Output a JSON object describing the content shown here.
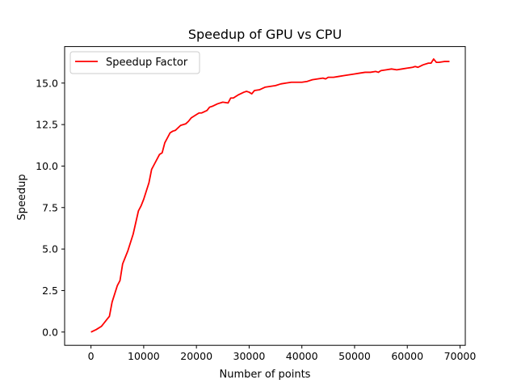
{
  "chart_data": {
    "type": "line",
    "title": "Speedup of GPU vs CPU",
    "xlabel": "Number of points",
    "ylabel": "Speedup",
    "xlim": [
      -5000,
      71000
    ],
    "ylim": [
      -0.8,
      17.2
    ],
    "xticks": [
      0,
      10000,
      20000,
      30000,
      40000,
      50000,
      60000,
      70000
    ],
    "xtick_labels": [
      "0",
      "10000",
      "20000",
      "30000",
      "40000",
      "50000",
      "60000",
      "70000"
    ],
    "yticks": [
      0.0,
      2.5,
      5.0,
      7.5,
      10.0,
      12.5,
      15.0
    ],
    "ytick_labels": [
      "0.0",
      "2.5",
      "5.0",
      "7.5",
      "10.0",
      "12.5",
      "15.0"
    ],
    "grid": false,
    "legend": "top-left",
    "series": [
      {
        "name": "Speedup Factor",
        "color": "#ff0000",
        "x": [
          0,
          1000,
          2000,
          3000,
          3500,
          4000,
          5000,
          5500,
          6000,
          6500,
          7000,
          8000,
          9000,
          9500,
          10000,
          11000,
          11500,
          12000,
          13000,
          13500,
          14000,
          15000,
          15500,
          16000,
          17000,
          18000,
          18500,
          19000,
          20000,
          20500,
          21000,
          22000,
          22500,
          23000,
          24000,
          25000,
          26000,
          26500,
          27000,
          28000,
          29000,
          29500,
          30000,
          30500,
          31000,
          32000,
          33000,
          34000,
          35000,
          36000,
          37000,
          38000,
          39000,
          40000,
          41000,
          42000,
          43000,
          44000,
          44500,
          45000,
          46000,
          47000,
          48000,
          49000,
          50000,
          51000,
          52000,
          53000,
          54000,
          54500,
          55000,
          56000,
          57000,
          58000,
          59000,
          60000,
          61000,
          61500,
          62000,
          63000,
          64000,
          64500,
          65000,
          65500,
          66000,
          67000,
          68000
        ],
        "values": [
          0.0,
          0.15,
          0.35,
          0.75,
          0.95,
          1.8,
          2.8,
          3.1,
          4.1,
          4.5,
          4.9,
          5.9,
          7.3,
          7.6,
          8.0,
          9.0,
          9.8,
          10.1,
          10.7,
          10.8,
          11.4,
          12.0,
          12.1,
          12.15,
          12.45,
          12.55,
          12.7,
          12.9,
          13.1,
          13.2,
          13.2,
          13.35,
          13.55,
          13.6,
          13.75,
          13.85,
          13.8,
          14.1,
          14.1,
          14.3,
          14.45,
          14.5,
          14.45,
          14.35,
          14.55,
          14.6,
          14.75,
          14.8,
          14.85,
          14.95,
          15.0,
          15.05,
          15.05,
          15.05,
          15.1,
          15.2,
          15.25,
          15.3,
          15.25,
          15.35,
          15.35,
          15.4,
          15.45,
          15.5,
          15.55,
          15.6,
          15.65,
          15.65,
          15.7,
          15.65,
          15.75,
          15.8,
          15.85,
          15.8,
          15.85,
          15.9,
          15.95,
          16.0,
          15.95,
          16.1,
          16.2,
          16.2,
          16.45,
          16.25,
          16.25,
          16.3,
          16.3
        ]
      }
    ]
  }
}
